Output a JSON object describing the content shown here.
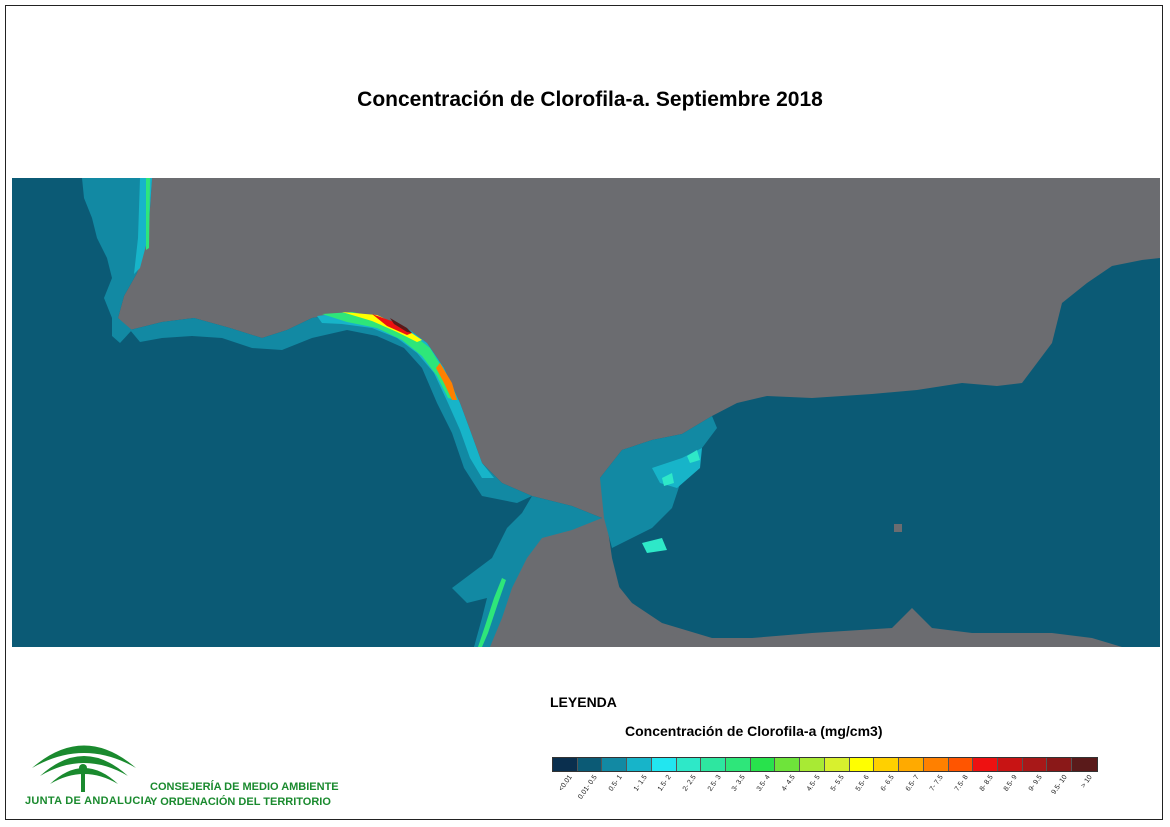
{
  "title": "Concentración de Clorofila-a. Septiembre 2018",
  "legend": {
    "heading": "LEYENDA",
    "subtitle": "Concentración de Clorofila-a (mg/cm3)",
    "classes": [
      {
        "label": "<0.01",
        "color": "#0a2f4e"
      },
      {
        "label": "0.01- 0.5",
        "color": "#0b5a75"
      },
      {
        "label": "0.5- 1",
        "color": "#1289a3"
      },
      {
        "label": "1- 1.5",
        "color": "#17b4c9"
      },
      {
        "label": "1.5- 2",
        "color": "#22e6f0"
      },
      {
        "label": "2- 2.5",
        "color": "#2ee8c8"
      },
      {
        "label": "2.5- 3",
        "color": "#2ee6a0"
      },
      {
        "label": "3- 3.5",
        "color": "#2ee67a"
      },
      {
        "label": "3.5- 4",
        "color": "#28e24c"
      },
      {
        "label": "4- 4.5",
        "color": "#6ee43a"
      },
      {
        "label": "4.5- 5",
        "color": "#a8ea34"
      },
      {
        "label": "5- 5.5",
        "color": "#d8f02e"
      },
      {
        "label": "5.5- 6",
        "color": "#ffff00"
      },
      {
        "label": "6- 6.5",
        "color": "#ffd000"
      },
      {
        "label": "6.5- 7",
        "color": "#ffaa00"
      },
      {
        "label": "7- 7.5",
        "color": "#ff8000"
      },
      {
        "label": "7.5- 8",
        "color": "#ff5500"
      },
      {
        "label": "8- 8.5",
        "color": "#ee1111"
      },
      {
        "label": "8.5- 9",
        "color": "#c81414"
      },
      {
        "label": "9- 9.5",
        "color": "#a81818"
      },
      {
        "label": "9.5- 10",
        "color": "#8a1818"
      },
      {
        "label": "> 10",
        "color": "#5a1a1a"
      }
    ]
  },
  "org": {
    "brand": "JUNTA DE ANDALUCIA",
    "dept_line1": "CONSEJERÍA DE MEDIO AMBIENTE",
    "dept_line2": "Y ORDENACIÓN DEL TERRITORIO",
    "color": "#1a8a2e"
  },
  "map": {
    "sea_color": "#0b5a75",
    "land_color": "#6b6c70"
  }
}
